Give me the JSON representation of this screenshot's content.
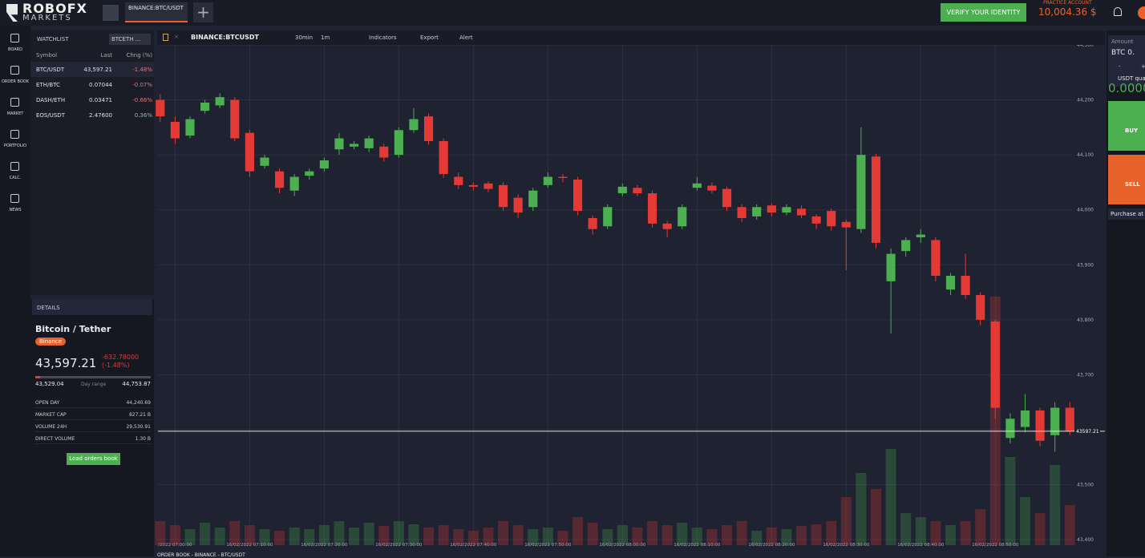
{
  "header": {
    "logo_top": "ROBOFX",
    "logo_bottom": "MARKETS",
    "tab": "BINANCE:BTC/USDT",
    "verify_button": "VERIFY YOUR IDENTITY",
    "account_label": "PRACTICE ACCOUNT",
    "balance": "10,004.36 $"
  },
  "sidebar": [
    "BOARD",
    "ORDER BOOK",
    "MARKET",
    "PORTFOLIO",
    "CALC.",
    "NEWS"
  ],
  "watchlist": {
    "title": "WATCHLIST",
    "filter": "BTCETH ...",
    "columns": [
      "Symbol",
      "Last",
      "Chng (%)"
    ],
    "rows": [
      [
        "BTC/USDT",
        "43,597.21",
        "-1.48%"
      ],
      [
        "ETH/BTC",
        "0.07044",
        "-0.07%"
      ],
      [
        "DASH/ETH",
        "0.03471",
        "-0.66%"
      ],
      [
        "EOS/USDT",
        "2.47600",
        "0.36%"
      ]
    ]
  },
  "details": {
    "title": "DETAILS",
    "name": "Bitcoin / Tether",
    "exchange": "Binance",
    "price": "43,597.21",
    "change": "-632.78000",
    "change_pct": "(-1.48%)",
    "range_low": "43,529.04",
    "range_label": "Day range",
    "range_high": "44,753.87",
    "stats": [
      [
        "OPEN DAY",
        "44,240.69"
      ],
      [
        "MARKET CAP",
        "827.21 B"
      ],
      [
        "VOLUME 24H",
        "29,530.91"
      ],
      [
        "DIRECT VOLUME",
        "1.30 B"
      ]
    ],
    "button": "Load orders book"
  },
  "toolbar": {
    "symbol": "BINANCE:BTCUSDT",
    "interval": "30min",
    "range": "1m",
    "indicators": "Indicators",
    "export": "Export",
    "alert": "Alert"
  },
  "trade_panel": {
    "amount_label": "Amount",
    "amount": "BTC 0.",
    "minus": "-",
    "plus": "+",
    "quantity_label": "USDT quar",
    "quantity": "0.0000",
    "buy": "BUY",
    "sell": "SELL",
    "purchase": "Purchase at"
  },
  "bottom_bar": "ORDER BOOK - BINANCE - BTC/USDT",
  "chart_data": {
    "type": "candlestick",
    "up_color": "#4caf50",
    "down_color": "#e53935",
    "grid": true,
    "x": [
      -2,
      0,
      2,
      4,
      6,
      8,
      10,
      12,
      14,
      16,
      18,
      20,
      22,
      24,
      26,
      28,
      30,
      32,
      34,
      36,
      38,
      40,
      42,
      44,
      46,
      48,
      50,
      52,
      54,
      56,
      58,
      60,
      62,
      64,
      66,
      68,
      70,
      72,
      74,
      76,
      78,
      80,
      82,
      84,
      86,
      88,
      90,
      92,
      94,
      96,
      98,
      100,
      102,
      104,
      106,
      108,
      110,
      112,
      114,
      116,
      118,
      120
    ],
    "open": [
      44200,
      44160,
      44135,
      44180,
      44190,
      44200,
      44140,
      44080,
      44070,
      44035,
      44062,
      44075,
      44110,
      44115,
      44112,
      44115,
      44100,
      44145,
      44170,
      44125,
      44060,
      44045,
      44048,
      44045,
      44022,
      44005,
      44045,
      44060,
      44055,
      43985,
      43970,
      44030,
      44040,
      44030,
      43975,
      43970,
      44040,
      44044,
      44038,
      44005,
      43988,
      44008,
      43995,
      44002,
      43988,
      43998,
      43978,
      43965,
      44097,
      43870,
      43925,
      43950,
      43945,
      43855,
      43880,
      43845,
      43797,
      43585,
      43605,
      43635,
      43590,
      43640
    ],
    "high": [
      44210,
      44170,
      44170,
      44200,
      44212,
      44205,
      44145,
      44100,
      44075,
      44065,
      44075,
      44095,
      44140,
      44125,
      44135,
      44120,
      44150,
      44185,
      44175,
      44130,
      44068,
      44050,
      44052,
      44050,
      44028,
      44040,
      44068,
      44065,
      44060,
      43990,
      44010,
      44048,
      44045,
      44035,
      43980,
      44010,
      44060,
      44050,
      44042,
      44010,
      44010,
      44012,
      44010,
      44008,
      43992,
      44002,
      43982,
      44150,
      44102,
      43930,
      43950,
      43965,
      43950,
      43885,
      43920,
      43850,
      43800,
      43630,
      43665,
      43640,
      43650,
      43650
    ],
    "low": [
      44160,
      44120,
      44130,
      44175,
      44185,
      44125,
      44060,
      44075,
      44030,
      44025,
      44055,
      44070,
      44100,
      44110,
      44105,
      44088,
      44095,
      44140,
      44118,
      44058,
      44038,
      44035,
      44032,
      43998,
      43985,
      43998,
      44040,
      44050,
      43990,
      43955,
      43965,
      44025,
      44025,
      43968,
      43950,
      43965,
      44035,
      44030,
      43998,
      43978,
      43982,
      43988,
      43990,
      43985,
      43965,
      43962,
      43890,
      43958,
      43930,
      43775,
      43915,
      43940,
      43870,
      43845,
      43838,
      43790,
      43620,
      43575,
      43595,
      43570,
      43560,
      43590
    ],
    "close": [
      44170,
      44130,
      44165,
      44195,
      44205,
      44130,
      44070,
      44095,
      44040,
      44060,
      44070,
      44090,
      44130,
      44120,
      44130,
      44095,
      44145,
      44165,
      44125,
      44065,
      44045,
      44042,
      44038,
      44005,
      43995,
      44035,
      44060,
      44058,
      43998,
      43965,
      44005,
      44042,
      44030,
      43975,
      43965,
      44005,
      44048,
      44035,
      44005,
      43985,
      44005,
      43995,
      44005,
      43990,
      43975,
      43970,
      43968,
      44100,
      43940,
      43920,
      43945,
      43955,
      43880,
      43880,
      43845,
      43800,
      43640,
      43620,
      43635,
      43580,
      43640,
      43597.21
    ],
    "volume": [
      30,
      25,
      20,
      28,
      22,
      30,
      25,
      20,
      18,
      22,
      20,
      25,
      30,
      22,
      28,
      24,
      30,
      26,
      22,
      25,
      20,
      18,
      22,
      30,
      25,
      20,
      22,
      18,
      35,
      28,
      20,
      25,
      22,
      30,
      25,
      28,
      22,
      20,
      25,
      30,
      18,
      22,
      20,
      24,
      26,
      30,
      60,
      90,
      70,
      120,
      40,
      35,
      30,
      25,
      30,
      45,
      310,
      110,
      60,
      40,
      100,
      50
    ],
    "xlim": [
      -2.3,
      120.4
    ],
    "ylim": [
      43390,
      44300
    ],
    "yticks": [
      {
        "value": 43400,
        "label": "43,400"
      },
      {
        "value": 43500,
        "label": "43,500"
      },
      {
        "value": 43600,
        "label": "43,600"
      },
      {
        "value": 43700,
        "label": "43,700"
      },
      {
        "value": 43800,
        "label": "43,800"
      },
      {
        "value": 43900,
        "label": "43,900"
      },
      {
        "value": 44000,
        "label": "44,000"
      },
      {
        "value": 44100,
        "label": "44,100"
      },
      {
        "value": 44200,
        "label": "44,200"
      },
      {
        "value": 44300,
        "label": "44,300"
      }
    ],
    "xticks": [
      {
        "value": 0,
        "label": "/2022 07:00:00"
      },
      {
        "value": 10,
        "label": "16/02/2022 07:10:00"
      },
      {
        "value": 20,
        "label": "16/02/2022 07:20:00"
      },
      {
        "value": 30,
        "label": "16/02/2022 07:30:00"
      },
      {
        "value": 40,
        "label": "16/02/2022 07:40:00"
      },
      {
        "value": 50,
        "label": "16/02/2022 07:50:00"
      },
      {
        "value": 60,
        "label": "16/02/2022 08:00:00"
      },
      {
        "value": 70,
        "label": "16/02/2022 08:10:00"
      },
      {
        "value": 80,
        "label": "16/02/2022 08:20:00"
      },
      {
        "value": 90,
        "label": "16/02/2022 08:30:00"
      },
      {
        "value": 100,
        "label": "16/02/2022 08:40:00"
      },
      {
        "value": 110,
        "label": "16/02/2022 08:50:00"
      }
    ],
    "last_price": {
      "value": 43597.21,
      "label": "43597.21"
    }
  }
}
